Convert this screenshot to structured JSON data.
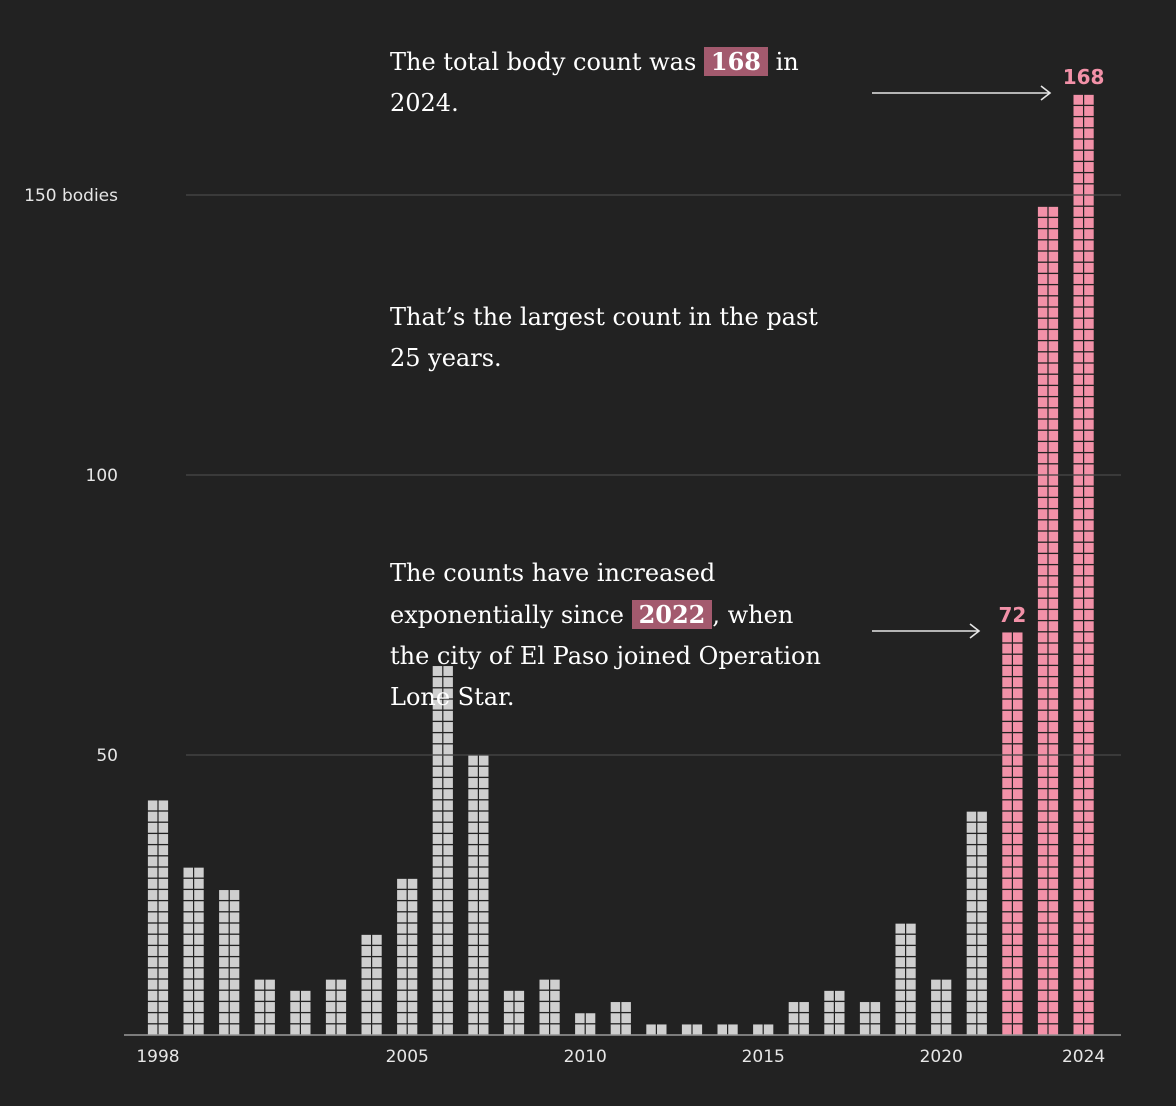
{
  "annotations": {
    "a1": {
      "before": "The total body count was ",
      "highlight": "168",
      "after": " in 2024."
    },
    "a2": {
      "text": "That’s the largest count in the past 25 years."
    },
    "a3": {
      "before": "The counts have increased exponentially since ",
      "highlight": "2022",
      "after": ", when the city of El Paso joined Operation Lone Star."
    }
  },
  "chart_data": {
    "type": "bar",
    "title": "",
    "xlabel": "",
    "ylabel": "",
    "ylim": [
      0,
      168
    ],
    "y_ticks": [
      {
        "value": 50,
        "label": "50"
      },
      {
        "value": 100,
        "label": "100"
      },
      {
        "value": 150,
        "label": "150 bodies"
      }
    ],
    "x_ticks": [
      1998,
      2005,
      2010,
      2015,
      2020,
      2024
    ],
    "x_tick_labels": [
      "1998",
      "2005",
      "2010",
      "2015",
      "2020",
      "2024"
    ],
    "categories": [
      1998,
      1999,
      2000,
      2001,
      2002,
      2003,
      2004,
      2005,
      2006,
      2007,
      2008,
      2009,
      2010,
      2011,
      2012,
      2013,
      2014,
      2015,
      2016,
      2017,
      2018,
      2019,
      2020,
      2021,
      2022,
      2023,
      2024
    ],
    "values": [
      42,
      30,
      26,
      10,
      8,
      10,
      18,
      28,
      66,
      50,
      8,
      10,
      4,
      6,
      2,
      2,
      2,
      2,
      6,
      8,
      6,
      20,
      10,
      40,
      72,
      148,
      168
    ],
    "highlight_from": 2022,
    "data_labels": [
      {
        "category": 2022,
        "label": "72"
      },
      {
        "category": 2024,
        "label": "168"
      }
    ],
    "colors": {
      "normal": "#cfcfcf",
      "highlight": "#f291a8",
      "background": "#222222"
    },
    "grid": true
  }
}
